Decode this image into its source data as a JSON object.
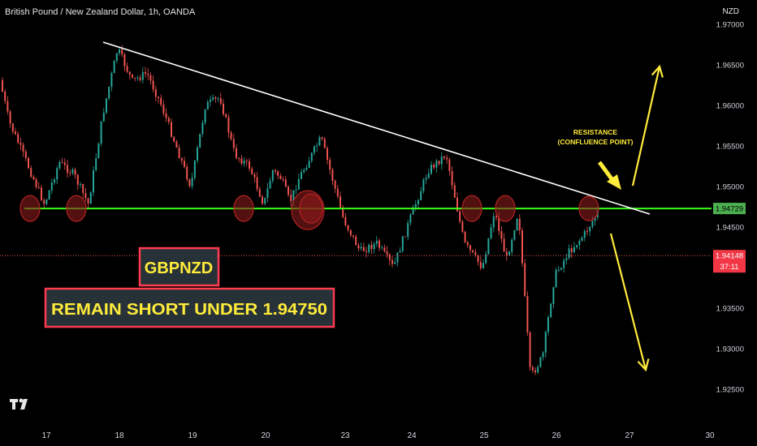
{
  "header": {
    "symbol_title": "British Pound / New Zealand Dollar, 1h, OANDA",
    "currency": "NZD"
  },
  "colors": {
    "background": "#000000",
    "bull": "#26a69a",
    "bear": "#ef5350",
    "support_line": "#39ff14",
    "trendline": "#ffffff",
    "arrow": "#ffeb3b",
    "circle_fill": "#8b1a1a",
    "label_border": "#ff3b4f",
    "label_bg": "#263238",
    "label_text": "#ffeb3b",
    "price_tag_green": "#4caf50",
    "price_tag_red": "#f23645"
  },
  "annotations": {
    "pair_label": "GBPNZD",
    "signal_label": "REMAIN SHORT UNDER 1.94750",
    "resistance_line1": "RESISTANCE",
    "resistance_line2": "(CONFLUENCE POINT)"
  },
  "price_axis": {
    "ticks": [
      "1.97000",
      "1.96500",
      "1.96000",
      "1.95500",
      "1.95000",
      "1.94500",
      "1.93500",
      "1.93000",
      "1.92500"
    ],
    "support_tag": "1.94729",
    "last_price_tag": "1.94148",
    "countdown": "37:11"
  },
  "time_axis": {
    "labels": [
      "17",
      "18",
      "19",
      "20",
      "23",
      "24",
      "25",
      "26",
      "27",
      "30"
    ]
  },
  "chart_data": {
    "type": "candlestick",
    "title": "British Pound / New Zealand Dollar, 1h, OANDA",
    "ylim": [
      1.9235,
      1.9715
    ],
    "support_level": 1.94729,
    "last_price": 1.94148,
    "trendline": [
      {
        "x": "18",
        "y": 1.9678
      },
      {
        "x": "27",
        "y": 1.9466
      }
    ],
    "close_path": [
      {
        "x": "16",
        "y": 1.964
      },
      {
        "x": "16",
        "y": 1.958
      },
      {
        "x": "17",
        "y": 1.9478
      },
      {
        "x": "17",
        "y": 1.953
      },
      {
        "x": "17",
        "y": 1.9515
      },
      {
        "x": "17",
        "y": 1.9478
      },
      {
        "x": "17",
        "y": 1.959
      },
      {
        "x": "18",
        "y": 1.967
      },
      {
        "x": "18",
        "y": 1.963
      },
      {
        "x": "18",
        "y": 1.964
      },
      {
        "x": "18",
        "y": 1.96
      },
      {
        "x": "18",
        "y": 1.955
      },
      {
        "x": "19",
        "y": 1.95
      },
      {
        "x": "19",
        "y": 1.96
      },
      {
        "x": "19",
        "y": 1.961
      },
      {
        "x": "19",
        "y": 1.954
      },
      {
        "x": "19",
        "y": 1.9525
      },
      {
        "x": "20",
        "y": 1.9478
      },
      {
        "x": "20",
        "y": 1.952
      },
      {
        "x": "20",
        "y": 1.951
      },
      {
        "x": "20",
        "y": 1.948
      },
      {
        "x": "22",
        "y": 1.951
      },
      {
        "x": "22",
        "y": 1.956
      },
      {
        "x": "23",
        "y": 1.946
      },
      {
        "x": "23",
        "y": 1.942
      },
      {
        "x": "23",
        "y": 1.943
      },
      {
        "x": "23",
        "y": 1.94
      },
      {
        "x": "24",
        "y": 1.946
      },
      {
        "x": "24",
        "y": 1.952
      },
      {
        "x": "24",
        "y": 1.954
      },
      {
        "x": "24",
        "y": 1.943
      },
      {
        "x": "25",
        "y": 1.94
      },
      {
        "x": "25",
        "y": 1.947
      },
      {
        "x": "25",
        "y": 1.941
      },
      {
        "x": "25",
        "y": 1.947
      },
      {
        "x": "25",
        "y": 1.9265
      },
      {
        "x": "25",
        "y": 1.929
      },
      {
        "x": "26",
        "y": 1.939
      },
      {
        "x": "26",
        "y": 1.942
      },
      {
        "x": "26",
        "y": 1.944
      },
      {
        "x": "26",
        "y": 1.947
      },
      {
        "x": "26",
        "y": 1.9415
      }
    ],
    "touch_points": [
      "17",
      "17",
      "20",
      "22",
      "22",
      "24",
      "25",
      "26"
    ],
    "projection": {
      "up_target": 1.965,
      "down_target": 1.928
    }
  }
}
